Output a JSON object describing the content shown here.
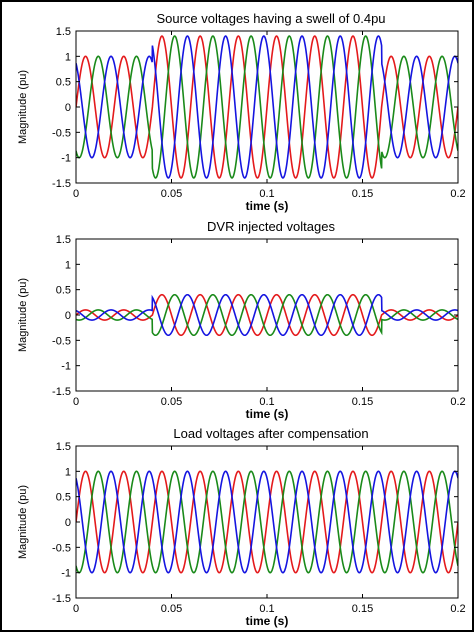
{
  "figure": {
    "colors": {
      "phase_a": "#e41a1c",
      "phase_b": "#1a8a1a",
      "phase_c": "#1515e0",
      "axis": "#000000"
    }
  },
  "chart_data": [
    {
      "type": "line",
      "title": "Source voltages having a swell of 0.4pu",
      "xlabel": "time (s)",
      "ylabel": "Magnitude (pu)",
      "xlim": [
        0,
        0.2
      ],
      "ylim": [
        -1.5,
        1.5
      ],
      "xticks": [
        "0",
        "0.05",
        "0.1",
        "0.15",
        "0.2"
      ],
      "yticks": [
        "-1.5",
        "-1",
        "-0.5",
        "0",
        "0.5",
        "1",
        "1.5"
      ],
      "grid": false,
      "frequency_hz": 50,
      "event_window": [
        0.04,
        0.16
      ],
      "series": [
        {
          "phase_deg": 0,
          "amplitude_normal": 1.0,
          "amplitude_event": 1.4
        },
        {
          "phase_deg": -120,
          "amplitude_normal": 1.0,
          "amplitude_event": 1.4
        },
        {
          "phase_deg": 120,
          "amplitude_normal": 1.0,
          "amplitude_event": 1.4
        }
      ]
    },
    {
      "type": "line",
      "title": "DVR injected voltages",
      "xlabel": "time (s)",
      "ylabel": "Magnitude (pu)",
      "xlim": [
        0,
        0.2
      ],
      "ylim": [
        -1.5,
        1.5
      ],
      "xticks": [
        "0",
        "0.05",
        "0.1",
        "0.15",
        "0.2"
      ],
      "yticks": [
        "-1.5",
        "-1",
        "-0.5",
        "0",
        "0.5",
        "1",
        "1.5"
      ],
      "grid": false,
      "frequency_hz": 50,
      "event_window": [
        0.04,
        0.16
      ],
      "series": [
        {
          "phase_deg": 0,
          "amplitude_normal": 0.1,
          "amplitude_event": 0.4
        },
        {
          "phase_deg": -120,
          "amplitude_normal": 0.1,
          "amplitude_event": 0.4
        },
        {
          "phase_deg": 120,
          "amplitude_normal": 0.1,
          "amplitude_event": 0.4
        }
      ]
    },
    {
      "type": "line",
      "title": "Load voltages after compensation",
      "xlabel": "time (s)",
      "ylabel": "Magnitude (pu)",
      "xlim": [
        0,
        0.2
      ],
      "ylim": [
        -1.5,
        1.5
      ],
      "xticks": [
        "0",
        "0.05",
        "0.1",
        "0.15",
        "0.2"
      ],
      "yticks": [
        "-1.5",
        "-1",
        "-0.5",
        "0",
        "0.5",
        "1",
        "1.5"
      ],
      "grid": false,
      "frequency_hz": 50,
      "event_window": [
        0.04,
        0.16
      ],
      "series": [
        {
          "phase_deg": 0,
          "amplitude_normal": 1.0,
          "amplitude_event": 1.0
        },
        {
          "phase_deg": -120,
          "amplitude_normal": 1.0,
          "amplitude_event": 1.0
        },
        {
          "phase_deg": 120,
          "amplitude_normal": 1.0,
          "amplitude_event": 1.0
        }
      ]
    }
  ]
}
